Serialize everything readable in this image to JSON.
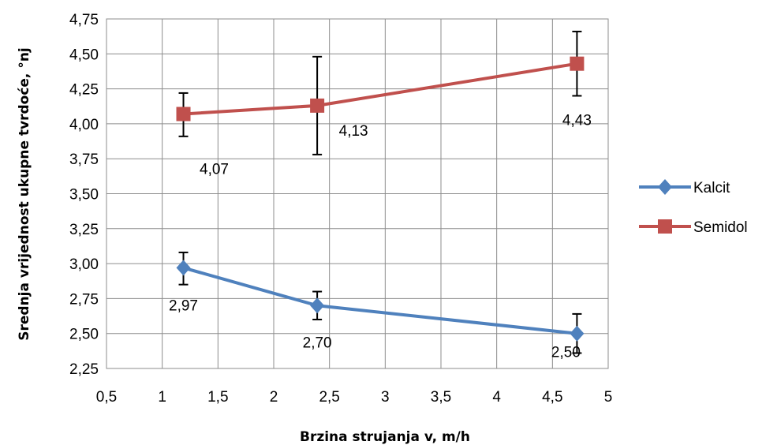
{
  "chart_data": {
    "type": "line",
    "title": "",
    "xlabel": "Brzina strujanja v, m/h",
    "ylabel": "Srednja vrijednost ukupne tvrdoće, °nj",
    "xlim": [
      0.5,
      5
    ],
    "ylim": [
      2.25,
      4.75
    ],
    "x_ticks": [
      "0,5",
      "1",
      "1,5",
      "2",
      "2,5",
      "3",
      "3,5",
      "4",
      "4,5",
      "5"
    ],
    "y_ticks": [
      "2,25",
      "2,50",
      "2,75",
      "3,00",
      "3,25",
      "3,50",
      "3,75",
      "4,00",
      "4,25",
      "4,50",
      "4,75"
    ],
    "grid": true,
    "legend_position": "right",
    "series": [
      {
        "name": "Kalcit",
        "color": "#4f81bd",
        "marker": "diamond",
        "x": [
          1.19,
          2.39,
          4.72
        ],
        "y": [
          2.97,
          2.7,
          2.5
        ],
        "labels": [
          "2,97",
          "2,70",
          "2,50"
        ],
        "err_low": [
          2.85,
          2.6,
          2.36
        ],
        "err_high": [
          3.08,
          2.8,
          2.64
        ]
      },
      {
        "name": "Semidol",
        "color": "#c0504d",
        "marker": "square",
        "x": [
          1.19,
          2.39,
          4.72
        ],
        "y": [
          4.07,
          4.13,
          4.43
        ],
        "labels": [
          "4,07",
          "4,13",
          "4,43"
        ],
        "err_low": [
          3.91,
          3.78,
          4.2
        ],
        "err_high": [
          4.22,
          4.48,
          4.66
        ]
      }
    ]
  }
}
